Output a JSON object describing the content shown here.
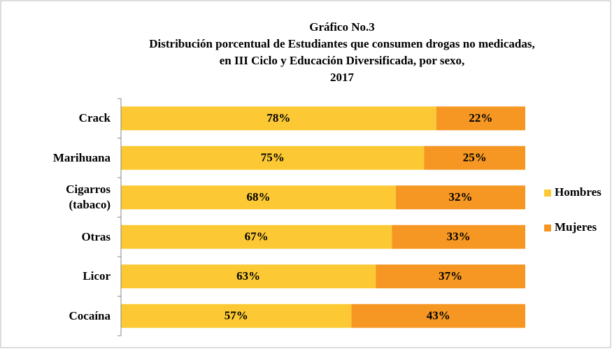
{
  "chart_data": {
    "type": "bar",
    "stacked": true,
    "orientation": "horizontal",
    "title": [
      "Gráfico No.3",
      "Distribución porcentual de Estudiantes que consumen drogas no medicadas,",
      "en III  Ciclo y Educación Diversificada, por sexo,",
      "2017"
    ],
    "categories": [
      "Crack",
      "Marihuana",
      "Cigarros (tabaco)",
      "Otras",
      "Licor",
      "Cocaína"
    ],
    "series": [
      {
        "name": "Hombres",
        "color": "#fcc935",
        "values": [
          78,
          75,
          68,
          67,
          63,
          57
        ],
        "value_labels": [
          "78%",
          "75%",
          "68%",
          "67%",
          "63%",
          "57%"
        ]
      },
      {
        "name": "Mujeres",
        "color": "#f59722",
        "values": [
          22,
          25,
          32,
          33,
          37,
          43
        ],
        "value_labels": [
          "22%",
          "25%",
          "32%",
          "33%",
          "37%",
          "43%"
        ]
      }
    ],
    "xlim": [
      0,
      100
    ],
    "legend": "right"
  }
}
